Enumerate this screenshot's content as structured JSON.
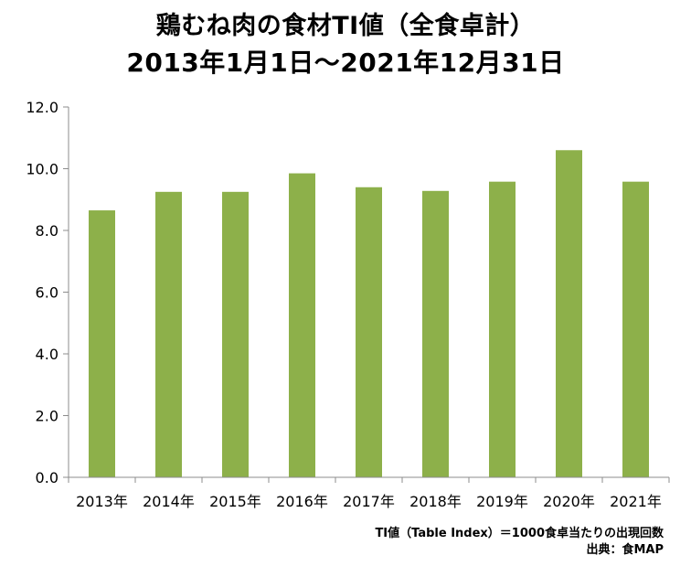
{
  "title": {
    "line1": "鶏むね肉の食材TI値（全食卓計）",
    "line2": "2013年1月1日～2021年12月31日"
  },
  "footnote": {
    "definition": "TI値（Table Index）＝1000食卓当たりの出現回数",
    "source": "出典：食MAP"
  },
  "colors": {
    "bar": "#8db04a",
    "axis": "#8c8c8c"
  },
  "chart_data": {
    "type": "bar",
    "categories": [
      "2013年",
      "2014年",
      "2015年",
      "2016年",
      "2017年",
      "2018年",
      "2019年",
      "2020年",
      "2021年"
    ],
    "values": [
      8.65,
      9.25,
      9.25,
      9.85,
      9.4,
      9.28,
      9.58,
      10.6,
      9.58
    ],
    "title": "",
    "xlabel": "",
    "ylabel": "",
    "ylim": [
      0,
      12
    ],
    "yticks": [
      "0.0",
      "2.0",
      "4.0",
      "6.0",
      "8.0",
      "10.0",
      "12.0"
    ],
    "grid": false,
    "legend": "none"
  }
}
